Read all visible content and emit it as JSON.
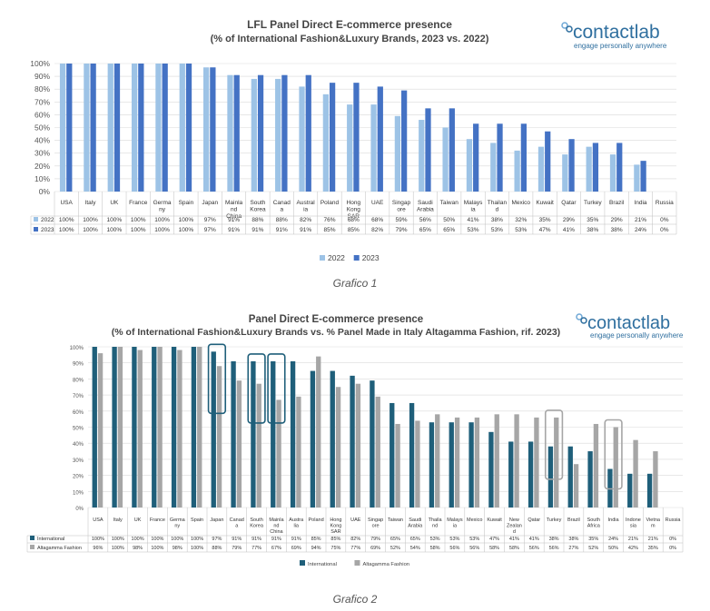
{
  "chart_data": [
    {
      "type": "bar",
      "title": "LFL Panel Direct E-commerce presence",
      "subtitle": "(% of International Fashion&Luxury Brands, 2023 vs. 2022)",
      "categories": [
        "USA",
        "Italy",
        "UK",
        "France",
        "Germany",
        "Spain",
        "Japan",
        "Mainland China",
        "South Korea",
        "Canada",
        "Australia",
        "Poland",
        "Hong Kong SAR",
        "UAE",
        "Singapore",
        "Saudi Arabia",
        "Taiwan",
        "Malaysia",
        "Thailand",
        "Mexico",
        "Kuwait",
        "Qatar",
        "Turkey",
        "Brazil",
        "India",
        "Russia"
      ],
      "category_labels": [
        "USA",
        "Italy",
        "UK",
        "France",
        "Germa\nny",
        "Spain",
        "Japan",
        "Mainla\nnd\nChina",
        "South\nKorea",
        "Canad\na",
        "Austral\nia",
        "Poland",
        "Hong\nKong\nSAR",
        "UAE",
        "Singap\nore",
        "Saudi\nArabia",
        "Taiwan",
        "Malays\nia",
        "Thailan\nd",
        "Mexico",
        "Kuwait",
        "Qatar",
        "Turkey",
        "Brazil",
        "India",
        "Russia"
      ],
      "series": [
        {
          "name": "2022",
          "color": "#9dc3e6",
          "values": [
            100,
            100,
            100,
            100,
            100,
            100,
            97,
            91,
            88,
            88,
            82,
            76,
            68,
            68,
            59,
            56,
            50,
            41,
            38,
            32,
            35,
            29,
            35,
            29,
            21,
            0
          ],
          "labels": [
            "100%",
            "100%",
            "100%",
            "100%",
            "100%",
            "100%",
            "97%",
            "91%",
            "88%",
            "88%",
            "82%",
            "76%",
            "68%",
            "68%",
            "59%",
            "56%",
            "50%",
            "41%",
            "38%",
            "32%",
            "35%",
            "29%",
            "35%",
            "29%",
            "21%",
            "0%"
          ]
        },
        {
          "name": "2023",
          "color": "#4472c4",
          "values": [
            100,
            100,
            100,
            100,
            100,
            100,
            97,
            91,
            91,
            91,
            91,
            85,
            85,
            82,
            79,
            65,
            65,
            53,
            53,
            53,
            47,
            41,
            38,
            38,
            24,
            0
          ],
          "labels": [
            "100%",
            "100%",
            "100%",
            "100%",
            "100%",
            "100%",
            "97%",
            "91%",
            "91%",
            "91%",
            "91%",
            "85%",
            "85%",
            "82%",
            "79%",
            "65%",
            "65%",
            "53%",
            "53%",
            "53%",
            "47%",
            "41%",
            "38%",
            "38%",
            "24%",
            "0%"
          ]
        }
      ],
      "ylim": [
        0,
        100
      ],
      "yticks": [
        "0%",
        "10%",
        "20%",
        "30%",
        "40%",
        "50%",
        "60%",
        "70%",
        "80%",
        "90%",
        "100%"
      ],
      "grid": true,
      "legend_position": "bottom",
      "caption": "Grafico 1"
    },
    {
      "type": "bar",
      "title": "Panel Direct E-commerce presence",
      "subtitle": "(% of International Fashion&Luxury Brands vs. % Panel Made in Italy Altagamma Fashion, rif. 2023)",
      "categories": [
        "USA",
        "Italy",
        "UK",
        "France",
        "Germany",
        "Spain",
        "Japan",
        "Canada",
        "South Korea",
        "Mainland China",
        "Australia",
        "Poland",
        "Hong Kong SAR",
        "UAE",
        "Singapore",
        "Taiwan",
        "Saudi Arabia",
        "Thailand",
        "Malaysia",
        "Mexico",
        "Kuwait",
        "New Zealand",
        "Qatar",
        "Turkey",
        "Brazil",
        "South Africa",
        "India",
        "Indonesia",
        "Vietnam",
        "Russia"
      ],
      "category_labels": [
        "USA",
        "Italy",
        "UK",
        "France",
        "Germa\nny",
        "Spain",
        "Japan",
        "Canad\na",
        "South\nKorea",
        "Mainla\nnd\nChina",
        "Austra\nlia",
        "Poland",
        "Hong\nKong\nSAR",
        "UAE",
        "Singap\nore",
        "Taiwan",
        "Saudi\nArabia",
        "Thaila\nnd",
        "Malays\nia",
        "Mexico",
        "Kuwait",
        "New\nZealan\nd",
        "Qatar",
        "Turkey",
        "Brazil",
        "South\nAfrica",
        "India",
        "Indone\nsia",
        "Vietna\nm",
        "Russia"
      ],
      "series": [
        {
          "name": "International",
          "color": "#1f5f7a",
          "values": [
            100,
            100,
            100,
            100,
            100,
            100,
            97,
            91,
            91,
            91,
            91,
            85,
            85,
            82,
            79,
            65,
            65,
            53,
            53,
            53,
            47,
            41,
            41,
            38,
            38,
            35,
            24,
            21,
            21,
            0
          ],
          "labels": [
            "100%",
            "100%",
            "100%",
            "100%",
            "100%",
            "100%",
            "97%",
            "91%",
            "91%",
            "91%",
            "91%",
            "85%",
            "85%",
            "82%",
            "79%",
            "65%",
            "65%",
            "53%",
            "53%",
            "53%",
            "47%",
            "41%",
            "41%",
            "38%",
            "38%",
            "35%",
            "24%",
            "21%",
            "21%",
            "0%"
          ]
        },
        {
          "name": "Altagamma Fashion",
          "color": "#a6a6a6",
          "values": [
            96,
            100,
            98,
            100,
            98,
            100,
            88,
            79,
            77,
            67,
            69,
            94,
            75,
            77,
            69,
            52,
            54,
            58,
            56,
            56,
            58,
            58,
            56,
            56,
            27,
            52,
            50,
            42,
            35,
            0
          ],
          "labels": [
            "96%",
            "100%",
            "98%",
            "100%",
            "98%",
            "100%",
            "88%",
            "79%",
            "77%",
            "67%",
            "69%",
            "94%",
            "75%",
            "77%",
            "69%",
            "52%",
            "54%",
            "58%",
            "56%",
            "56%",
            "58%",
            "58%",
            "56%",
            "56%",
            "27%",
            "52%",
            "50%",
            "42%",
            "35%",
            "0%"
          ]
        }
      ],
      "ylim": [
        0,
        100
      ],
      "yticks": [
        "0%",
        "10%",
        "20%",
        "30%",
        "40%",
        "50%",
        "60%",
        "70%",
        "80%",
        "90%",
        "100%"
      ],
      "grid": true,
      "legend_position": "bottom",
      "highlighted_categories": [
        "Japan",
        "South Korea",
        "Mainland China",
        "Turkey",
        "India"
      ],
      "highlight_color": "#1f5f7a",
      "highlight_color_alt": "#a6a6a6",
      "caption": "Grafico 2"
    }
  ],
  "logo": {
    "name": "contactlab",
    "tagline": "engage personally anywhere",
    "color": "#2f6f9f"
  }
}
